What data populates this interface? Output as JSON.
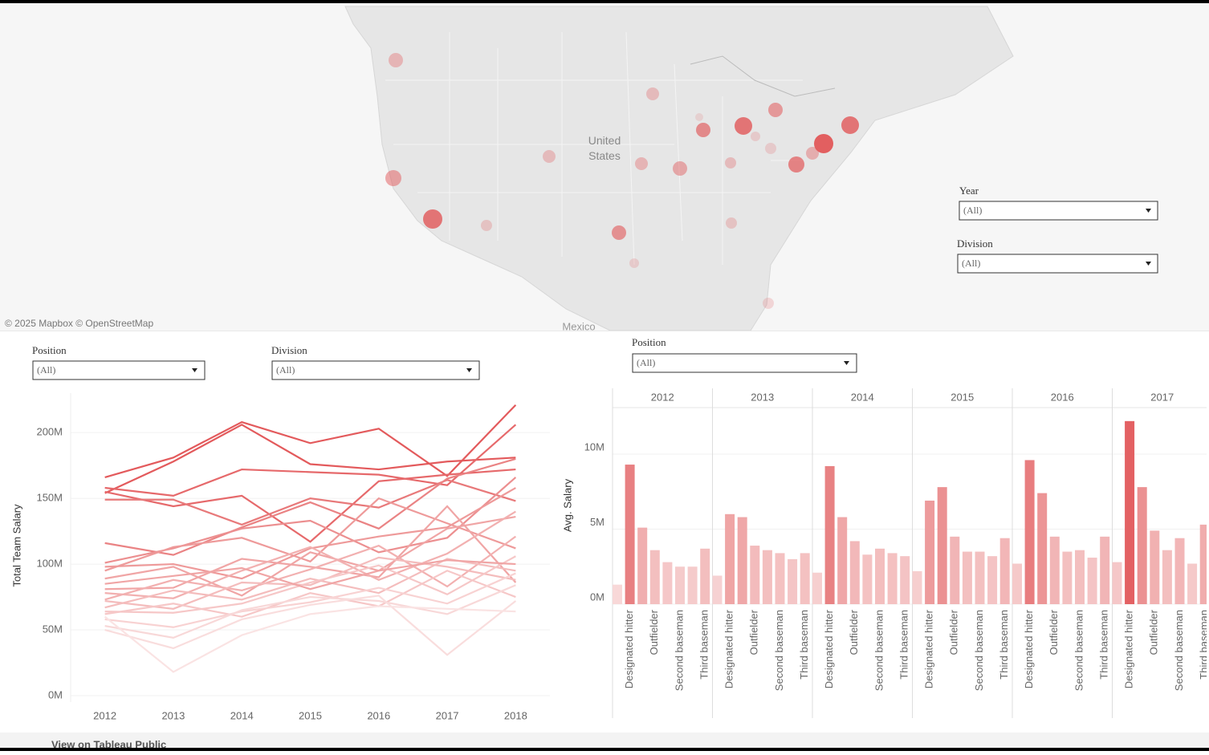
{
  "map": {
    "labels": [
      "United States",
      "Mexico"
    ],
    "attribution": "© 2025 Mapbox © OpenStreetMap"
  },
  "filters": [
    {
      "label": "Year",
      "value": "(All)"
    },
    {
      "label": "Division",
      "value": "(All)"
    },
    {
      "label": "Position",
      "value": "(All)"
    },
    {
      "label": "Division",
      "value": "(All)"
    },
    {
      "label": "Position",
      "value": "(All)"
    }
  ],
  "footer": {
    "link": "View on Tableau Public"
  },
  "chart_data": [
    {
      "type": "line",
      "y_label": "Total Team Salary",
      "x": [
        2012,
        2013,
        2014,
        2015,
        2016,
        2017,
        2018
      ],
      "xlim": [
        2011.5,
        2018.5
      ],
      "xticks": [
        2012,
        2013,
        2014,
        2015,
        2016,
        2017,
        2018
      ],
      "ylim": [
        0,
        230
      ],
      "yticks": [
        {
          "value": 0,
          "label": "0M"
        },
        {
          "value": 50,
          "label": "50M"
        },
        {
          "value": 100,
          "label": "100M"
        },
        {
          "value": 150,
          "label": "150M"
        },
        {
          "value": 200,
          "label": "200M"
        }
      ],
      "grid": true,
      "series": [
        {
          "color": "#e35a5c",
          "values": [
            166,
            181,
            208,
            192,
            203,
            167,
            221
          ]
        },
        {
          "color": "#e35a5c",
          "values": [
            154,
            178,
            206,
            176,
            172,
            178,
            181
          ]
        },
        {
          "color": "#e6696b",
          "values": [
            158,
            152,
            172,
            170,
            168,
            160,
            206
          ]
        },
        {
          "color": "#e6696b",
          "values": [
            155,
            144,
            152,
            117,
            163,
            168,
            172
          ]
        },
        {
          "color": "#e8797a",
          "values": [
            149,
            149,
            130,
            150,
            143,
            164,
            148
          ]
        },
        {
          "color": "#ea8384",
          "values": [
            116,
            107,
            128,
            147,
            127,
            165,
            180
          ]
        },
        {
          "color": "#ec8f90",
          "values": [
            101,
            112,
            127,
            133,
            109,
            120,
            166
          ]
        },
        {
          "color": "#ee9a9a",
          "values": [
            95,
            113,
            120,
            102,
            150,
            131,
            112
          ]
        },
        {
          "color": "#ee9a9a",
          "values": [
            98,
            100,
            89,
            112,
            121,
            128,
            158
          ]
        },
        {
          "color": "#f0a5a5",
          "values": [
            89,
            98,
            76,
            109,
            95,
            127,
            136
          ]
        },
        {
          "color": "#f0a5a5",
          "values": [
            81,
            82,
            104,
            98,
            90,
            144,
            86
          ]
        },
        {
          "color": "#f2b0b0",
          "values": [
            78,
            74,
            95,
            113,
            88,
            108,
            140
          ]
        },
        {
          "color": "#f2b0b0",
          "values": [
            73,
            88,
            80,
            96,
            114,
            83,
            121
          ]
        },
        {
          "color": "#f4bcbc",
          "values": [
            72,
            66,
            86,
            84,
            105,
            98,
            88
          ]
        },
        {
          "color": "#f4bcbc",
          "values": [
            67,
            80,
            73,
            89,
            78,
            104,
            95
          ]
        },
        {
          "color": "#f6c7c7",
          "values": [
            64,
            63,
            70,
            86,
            99,
            77,
            106
          ]
        },
        {
          "color": "#f6c7c7",
          "values": [
            62,
            70,
            60,
            78,
            68,
            95,
            75
          ]
        },
        {
          "color": "#f8d2d2",
          "values": [
            58,
            52,
            64,
            71,
            82,
            70,
            93
          ]
        },
        {
          "color": "#f8d8d8",
          "values": [
            53,
            44,
            65,
            75,
            72,
            62,
            84
          ]
        },
        {
          "color": "#f9dddd",
          "values": [
            50,
            36,
            58,
            69,
            76,
            31,
            72
          ]
        },
        {
          "color": "#fae3e3",
          "values": [
            60,
            18,
            46,
            62,
            68,
            66,
            64
          ]
        },
        {
          "color": "#f0a5a5",
          "values": [
            85,
            91,
            97,
            81,
            95,
            103,
            100
          ]
        }
      ]
    },
    {
      "type": "bar",
      "y_label": "Avg. Salary",
      "categories": [
        null,
        "Designated hitter",
        null,
        "Outfielder",
        null,
        "Second baseman",
        null,
        "Third baseman"
      ],
      "ylim": [
        0,
        13.1
      ],
      "yticks": [
        {
          "value": 0,
          "label": "0M"
        },
        {
          "value": 5,
          "label": "5M"
        },
        {
          "value": 10,
          "label": "10M"
        }
      ],
      "color_range": [
        "#fae6e6",
        "#e15759"
      ],
      "series": [
        {
          "name": "2012",
          "values": [
            1.3,
            9.3,
            5.1,
            3.6,
            2.8,
            2.5,
            2.5,
            3.7
          ]
        },
        {
          "name": "2013",
          "values": [
            1.9,
            6.0,
            5.8,
            3.9,
            3.6,
            3.4,
            3.0,
            3.4
          ]
        },
        {
          "name": "2014",
          "values": [
            2.1,
            9.2,
            5.8,
            4.2,
            3.3,
            3.7,
            3.4,
            3.2
          ]
        },
        {
          "name": "2015",
          "values": [
            2.2,
            6.9,
            7.8,
            4.5,
            3.5,
            3.5,
            3.2,
            4.4
          ]
        },
        {
          "name": "2016",
          "values": [
            2.7,
            9.6,
            7.4,
            4.5,
            3.5,
            3.6,
            3.1,
            4.5
          ]
        },
        {
          "name": "2017",
          "values": [
            2.8,
            12.2,
            7.8,
            4.9,
            3.6,
            4.4,
            2.7,
            5.3
          ]
        }
      ]
    }
  ]
}
